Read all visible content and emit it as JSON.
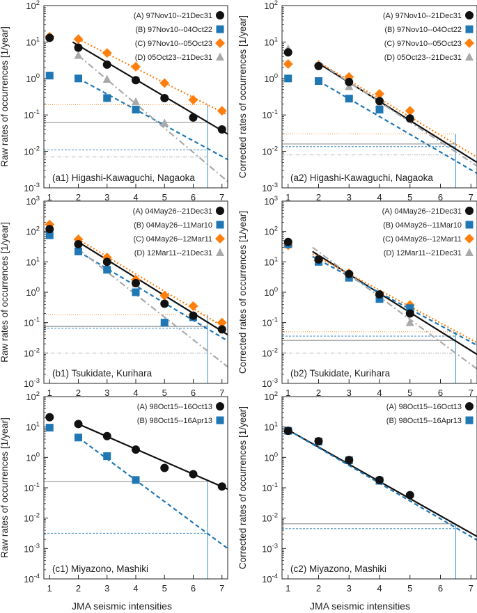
{
  "figure": {
    "xlabel": "JMA seismic intensities",
    "x_ticks": [
      1,
      2,
      3,
      4,
      5,
      6,
      7
    ]
  },
  "colors": {
    "A": "#111111",
    "B": "#1f77b4",
    "C": "#ff7f0e",
    "D": "#aaaaaa",
    "grid_h_black": "#777777",
    "v_line": "#5aa0cc"
  },
  "chart_data": [
    {
      "id": "a1",
      "type": "scatter",
      "title": "(a1) Higashi-Kawaguchi, Nagaoka",
      "ylabel": "Raw rates of occurrences [1/year]",
      "ylim_exp": [
        -3,
        2
      ],
      "xlim": [
        0.8,
        7.2
      ],
      "y_ticks": [
        "10-3",
        "10-2",
        "10-1",
        "100",
        "101",
        "102"
      ],
      "series": [
        {
          "key": "A",
          "label": "(A) 97Nov10--21Dec31",
          "points": [
            [
              1,
              13
            ],
            [
              2,
              7
            ],
            [
              3,
              2.4
            ],
            [
              4,
              0.9
            ],
            [
              5,
              0.29
            ],
            [
              6,
              0.085
            ],
            [
              7,
              0.04
            ]
          ],
          "fit": [
            [
              1.8,
              10
            ],
            [
              7.2,
              0.03
            ]
          ],
          "hline": 0.062
        },
        {
          "key": "B",
          "label": "(B) 97Nov10--04Oct22",
          "points": [
            [
              1,
              1.2
            ],
            [
              2,
              1.0
            ],
            [
              3,
              0.29
            ],
            [
              4,
              0.14
            ]
          ],
          "fit": [
            [
              2,
              1.0
            ],
            [
              7.2,
              0.006
            ]
          ],
          "hline": 0.011
        },
        {
          "key": "C",
          "label": "(C) 97Nov10--05Oct23",
          "points": [
            [
              1,
              14
            ],
            [
              2,
              12
            ],
            [
              3,
              5
            ],
            [
              4,
              2.1
            ],
            [
              5,
              0.75
            ],
            [
              6,
              0.26
            ],
            [
              7,
              0.13
            ]
          ],
          "fit": [
            [
              2,
              12
            ],
            [
              7.2,
              0.1
            ]
          ],
          "hline": 0.19
        },
        {
          "key": "D",
          "label": "(D) 05Oct23--21Dec31",
          "points": [
            [
              2,
              4.3
            ],
            [
              3,
              0.95
            ],
            [
              4,
              0.23
            ],
            [
              5,
              0.06
            ]
          ],
          "fit": [
            [
              2,
              4.3
            ],
            [
              7.2,
              0.0015
            ]
          ],
          "hline": 0.007
        }
      ],
      "vline": 6.5
    },
    {
      "id": "a2",
      "type": "scatter",
      "title": "(a2) Higashi-Kawaguchi, Nagaoka",
      "ylabel": "Corrected rates of occurrences [1/year]",
      "ylim_exp": [
        -3,
        2
      ],
      "xlim": [
        0.8,
        7.2
      ],
      "y_ticks": [
        "10-3",
        "10-2",
        "10-1",
        "100",
        "101",
        "102"
      ],
      "series": [
        {
          "key": "A",
          "label": "(A) 97Nov10--21Dec31",
          "points": [
            [
              1,
              5.2
            ],
            [
              2,
              2.2
            ],
            [
              3,
              0.8
            ],
            [
              4,
              0.24
            ],
            [
              5,
              0.08
            ]
          ],
          "fit": [
            [
              2,
              2.6
            ],
            [
              7.2,
              0.005
            ]
          ],
          "hline": 0.016
        },
        {
          "key": "B",
          "label": "(B) 97Nov10--04Oct22",
          "points": [
            [
              1,
              1.0
            ],
            [
              2,
              0.85
            ],
            [
              3,
              0.28
            ],
            [
              4,
              0.14
            ]
          ],
          "fit": [
            [
              2,
              0.85
            ],
            [
              7.2,
              0.0025
            ]
          ],
          "hline": 0.0135
        },
        {
          "key": "C",
          "label": "(C) 97Nov10--05Oct23",
          "points": [
            [
              1,
              2.5
            ],
            [
              2,
              2.3
            ],
            [
              3,
              1.1
            ],
            [
              4,
              0.38
            ],
            [
              5,
              0.13
            ]
          ],
          "fit": [
            [
              2,
              2.8
            ],
            [
              7.2,
              0.007
            ]
          ],
          "hline": 0.03
        },
        {
          "key": "D",
          "label": "(D) 05Oct23--21Dec31",
          "points": [
            [
              1,
              6.5
            ],
            [
              2,
              2.5
            ],
            [
              3,
              0.6
            ],
            [
              4,
              0.2
            ]
          ],
          "fit": [
            [
              2,
              2.8
            ],
            [
              7.2,
              0.004
            ]
          ],
          "hline": 0.008
        }
      ],
      "vline": 6.5
    },
    {
      "id": "b1",
      "type": "scatter",
      "title": "(b1) Tsukidate, Kurihara",
      "ylabel": "Raw rates of occurrences [1/year]",
      "ylim_exp": [
        -3,
        3
      ],
      "xlim": [
        0.8,
        7.2
      ],
      "y_ticks": [
        "10-3",
        "10-2",
        "10-1",
        "100",
        "101",
        "102",
        "103"
      ],
      "series": [
        {
          "key": "A",
          "label": "(A) 04May26--21Dec31",
          "points": [
            [
              1,
              120
            ],
            [
              2,
              38
            ],
            [
              3,
              10
            ],
            [
              4,
              2.0
            ],
            [
              5,
              0.42
            ],
            [
              6,
              0.17
            ],
            [
              7,
              0.06
            ]
          ],
          "fit": [
            [
              2,
              45
            ],
            [
              7.2,
              0.04
            ]
          ],
          "hline": 0.075
        },
        {
          "key": "B",
          "label": "(B) 04May26--11Mar10",
          "points": [
            [
              1,
              75
            ],
            [
              2,
              22
            ],
            [
              3,
              5.5
            ],
            [
              4,
              1.0
            ],
            [
              5,
              0.1
            ],
            [
              6,
              0.15
            ]
          ],
          "fit": [
            [
              2,
              22
            ],
            [
              7.2,
              0.025
            ]
          ],
          "hline": 0.065
        },
        {
          "key": "C",
          "label": "(C) 04May26--12Mar11",
          "points": [
            [
              1,
              170
            ],
            [
              2,
              55
            ],
            [
              3,
              14
            ],
            [
              4,
              2.6
            ],
            [
              5,
              0.78
            ],
            [
              6,
              0.35
            ],
            [
              7,
              0.1
            ]
          ],
          "fit": [
            [
              2,
              55
            ],
            [
              7.2,
              0.06
            ]
          ],
          "hline": 0.18
        },
        {
          "key": "D",
          "label": "(D) 12Mar11--21Dec31",
          "points": [
            [
              2,
              26
            ],
            [
              3,
              7
            ],
            [
              4,
              1.9
            ],
            [
              5,
              0.1
            ]
          ],
          "fit": [
            [
              2,
              26
            ],
            [
              7.2,
              0.0035
            ]
          ],
          "hline": 0.01
        }
      ],
      "vline": 6.5
    },
    {
      "id": "b2",
      "type": "scatter",
      "title": "(b2) Tsukidate, Kurihara",
      "ylabel": "Corrected rates of occurrences [1/year]",
      "ylim_exp": [
        -3,
        3
      ],
      "xlim": [
        0.8,
        7.2
      ],
      "y_ticks": [
        "10-3",
        "10-2",
        "10-1",
        "100",
        "101",
        "102",
        "103"
      ],
      "series": [
        {
          "key": "A",
          "label": "(A) 04May26--21Dec31",
          "points": [
            [
              1,
              45
            ],
            [
              2,
              12
            ],
            [
              3,
              4
            ],
            [
              4,
              0.85
            ],
            [
              5,
              0.2
            ]
          ],
          "fit": [
            [
              1.8,
              22
            ],
            [
              7.2,
              0.009
            ]
          ],
          "hline": 0.026
        },
        {
          "key": "B",
          "label": "(B) 04May26--11Mar10",
          "points": [
            [
              1,
              38
            ],
            [
              2,
              10
            ],
            [
              3,
              3
            ],
            [
              4,
              0.6
            ],
            [
              5,
              0.3
            ]
          ],
          "fit": [
            [
              1.8,
              15
            ],
            [
              7.2,
              0.018
            ]
          ],
          "hline": 0.036
        },
        {
          "key": "C",
          "label": "(C) 04May26--12Mar11",
          "points": [
            [
              1,
              35
            ],
            [
              2,
              11
            ],
            [
              3,
              4.2
            ],
            [
              4,
              0.8
            ],
            [
              5,
              0.38
            ]
          ],
          "fit": [
            [
              1.8,
              18
            ],
            [
              7.2,
              0.022
            ]
          ],
          "hline": 0.05
        },
        {
          "key": "D",
          "label": "(D) 12Mar11--21Dec31",
          "points": [
            [
              1,
              40
            ],
            [
              2,
              13
            ],
            [
              3,
              4.5
            ],
            [
              4,
              0.8
            ],
            [
              5,
              0.1
            ]
          ],
          "fit": [
            [
              1.8,
              30
            ],
            [
              7.2,
              0.003
            ]
          ],
          "hline": 0.01
        }
      ],
      "vline": 6.5
    },
    {
      "id": "c1",
      "type": "scatter",
      "title": "(c1) Miyazono, Mashiki",
      "ylabel": "Raw rates of occurrences [1/year]",
      "ylim_exp": [
        -4,
        2
      ],
      "xlim": [
        0.8,
        7.2
      ],
      "y_ticks": [
        "10-4",
        "10-3",
        "10-2",
        "10-1",
        "100",
        "101",
        "102"
      ],
      "series": [
        {
          "key": "A",
          "label": "(A) 98Oct15--16Oct13",
          "points": [
            [
              1,
              21
            ],
            [
              2,
              12.5
            ],
            [
              3,
              5
            ],
            [
              4,
              1.8
            ],
            [
              5,
              0.45
            ],
            [
              6,
              0.28
            ],
            [
              7,
              0.11
            ]
          ],
          "fit": [
            [
              2,
              12.5
            ],
            [
              7.2,
              0.09
            ]
          ],
          "hline": 0.16
        },
        {
          "key": "B",
          "label": "(B) 98Oct15--16Apr13",
          "points": [
            [
              1,
              9.5
            ],
            [
              2,
              4.5
            ],
            [
              3,
              1.1
            ],
            [
              4,
              0.18
            ]
          ],
          "fit": [
            [
              2,
              4.5
            ],
            [
              7.2,
              0.001
            ]
          ],
          "hline": 0.0032
        }
      ],
      "vline": 6.5
    },
    {
      "id": "c2",
      "type": "scatter",
      "title": "(c2) Miyazono, Mashiki",
      "ylabel": "Corrected rates of occurrences [1/year]",
      "ylim_exp": [
        -4,
        2
      ],
      "xlim": [
        0.8,
        7.2
      ],
      "y_ticks": [
        "10-4",
        "10-3",
        "10-2",
        "10-1",
        "100",
        "101",
        "102"
      ],
      "series": [
        {
          "key": "A",
          "label": "(A) 98Oct15--16Oct13",
          "points": [
            [
              1,
              7.5
            ],
            [
              2,
              3.4
            ],
            [
              3,
              0.82
            ],
            [
              4,
              0.18
            ],
            [
              5,
              0.057
            ]
          ],
          "fit": [
            [
              1,
              8
            ],
            [
              7.2,
              0.0025
            ]
          ],
          "hline": 0.0065
        },
        {
          "key": "B",
          "label": "(B) 98Oct15--16Apr13",
          "points": [
            [
              1,
              7.5
            ],
            [
              2,
              3.3
            ],
            [
              3,
              0.8
            ],
            [
              4,
              0.17
            ]
          ],
          "fit": [
            [
              1,
              8
            ],
            [
              7.2,
              0.0019
            ]
          ],
          "hline": 0.0045
        }
      ],
      "vline": 6.5
    }
  ]
}
